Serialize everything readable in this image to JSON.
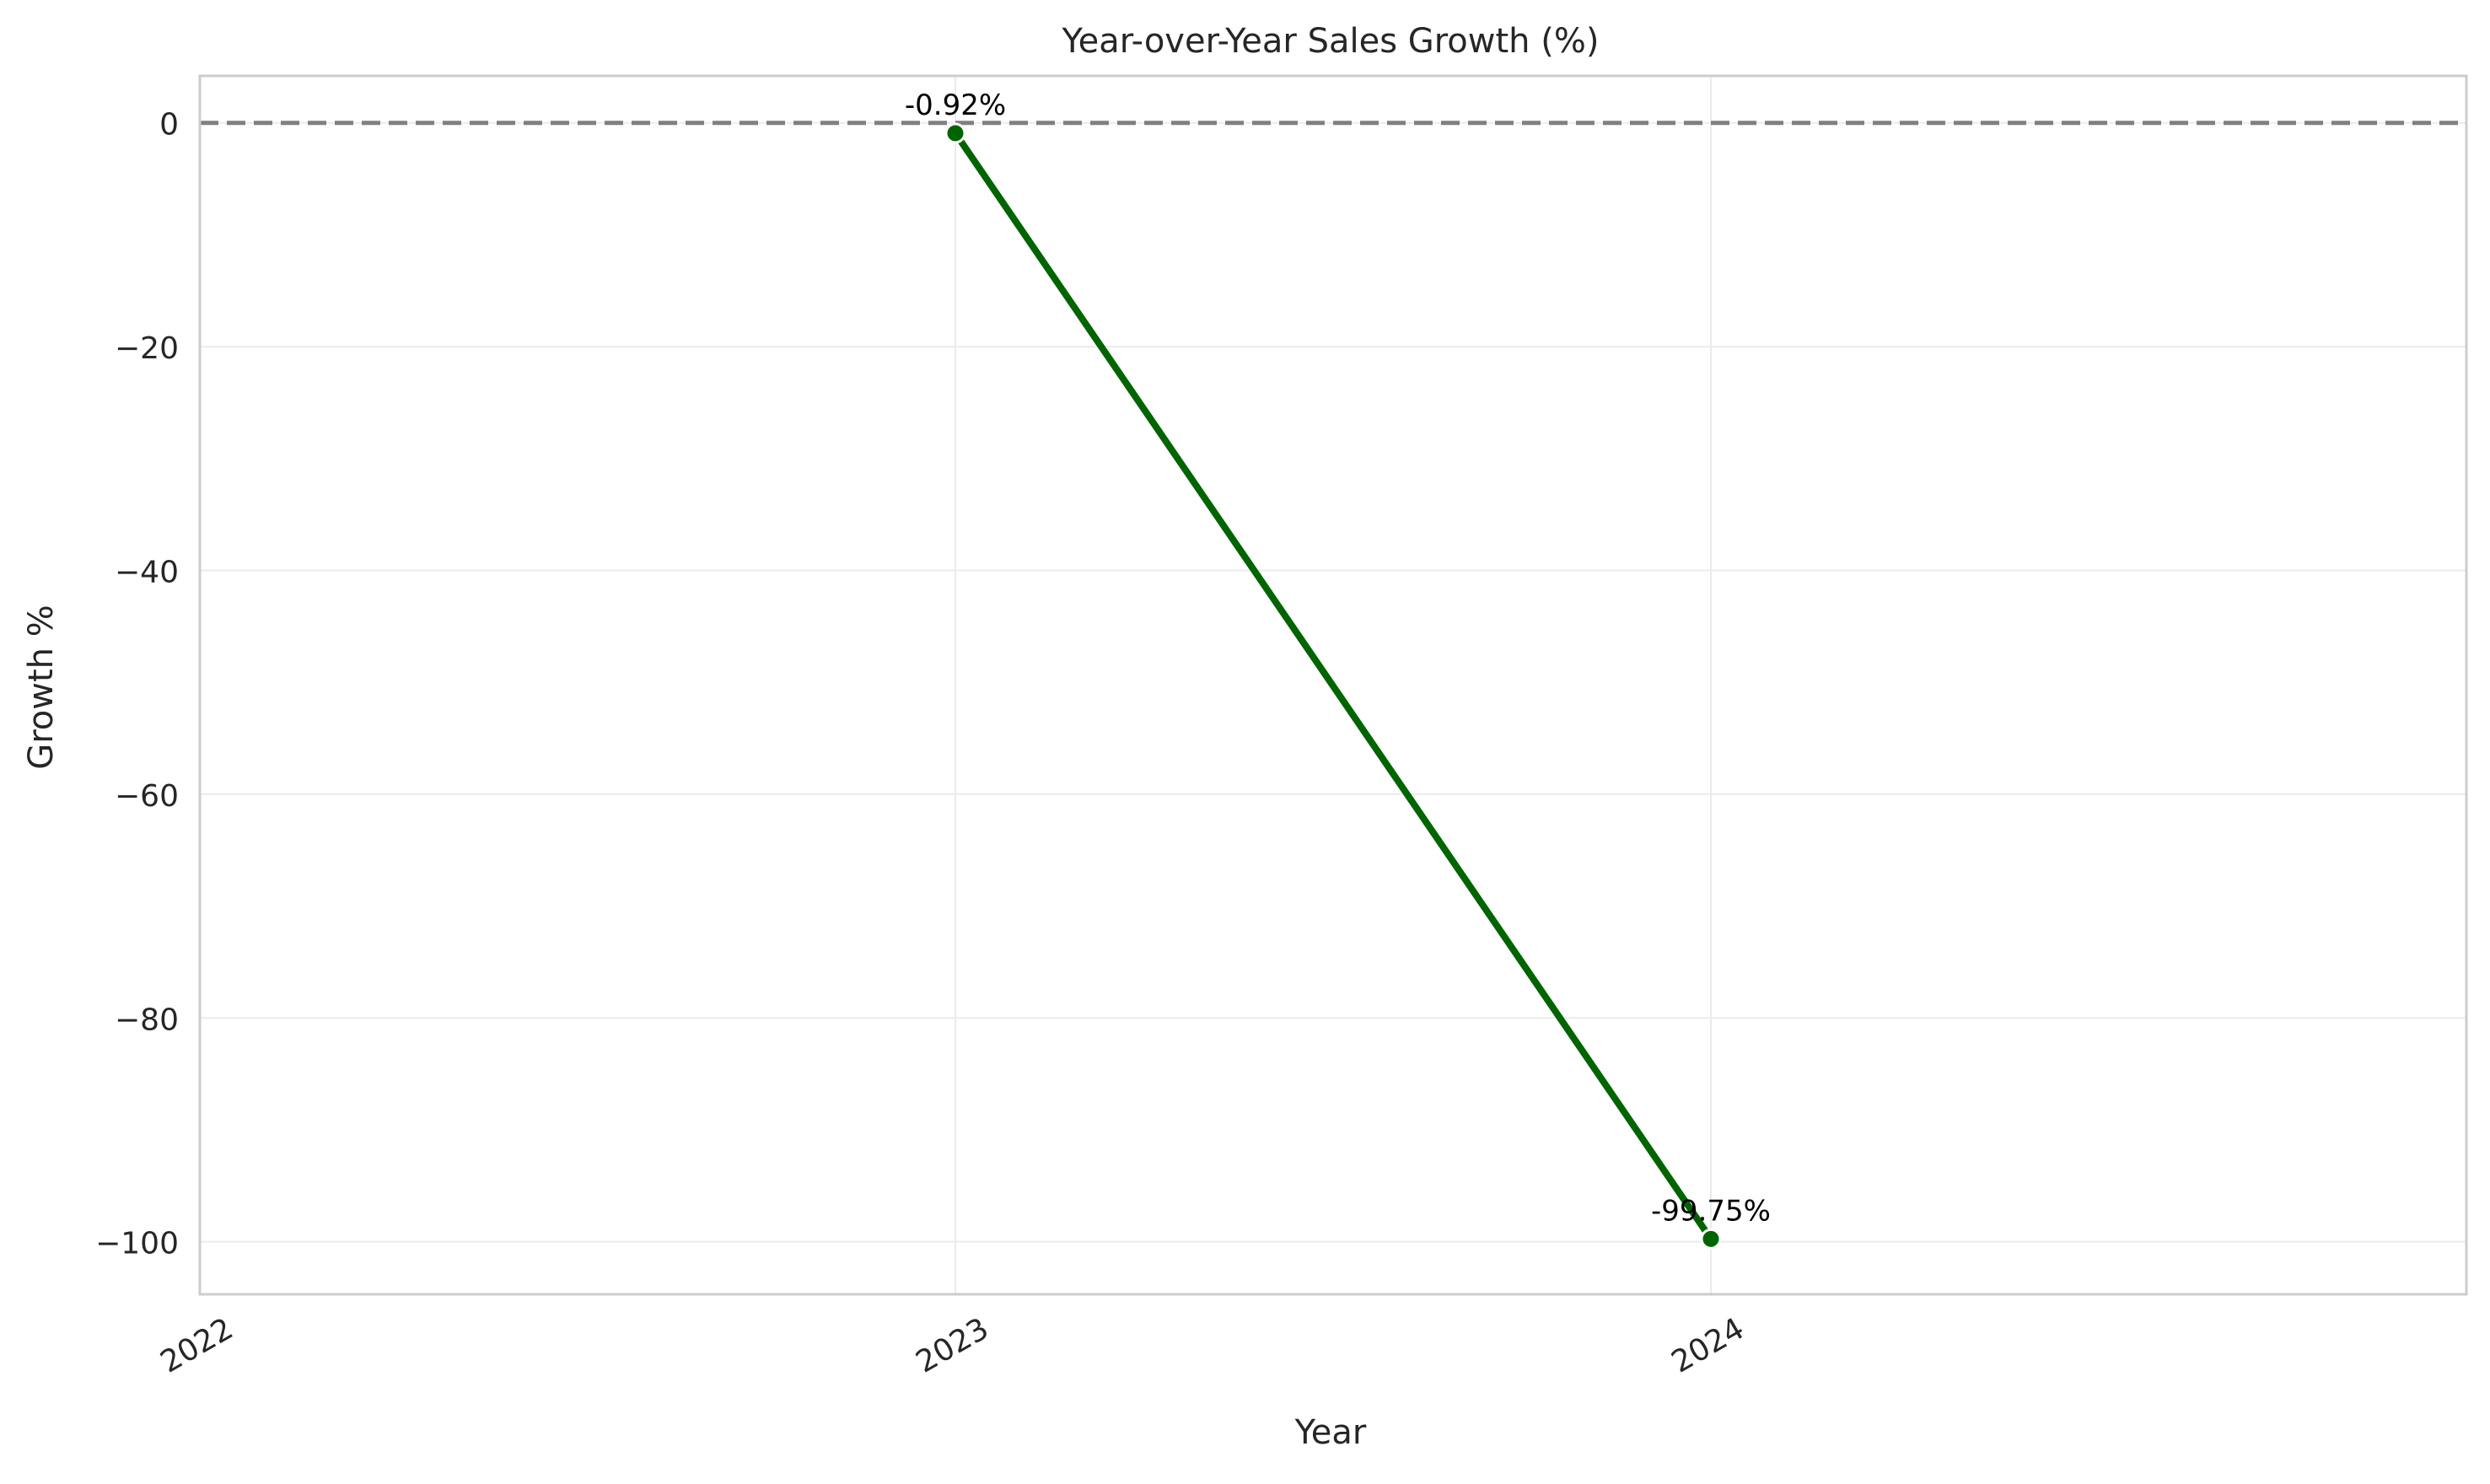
{
  "chart_data": {
    "type": "line",
    "title": "Year-over-Year Sales Growth (%)",
    "xlabel": "Year",
    "ylabel": "Growth %",
    "x_ticks": [
      "2022",
      "2023",
      "2024"
    ],
    "x_range": [
      2022,
      2025
    ],
    "ylim": [
      -104.7,
      4.2
    ],
    "y_ticks": [
      0,
      -20,
      -40,
      -60,
      -80,
      -100
    ],
    "y_tick_labels": [
      "0",
      "−20",
      "−40",
      "−60",
      "−80",
      "−100"
    ],
    "grid": true,
    "reference_line": {
      "y": 0,
      "style": "dashed",
      "color": "#808080"
    },
    "series": [
      {
        "x": [
          2023,
          2024
        ],
        "values": [
          -0.92,
          -99.75
        ],
        "labels": [
          "-0.92%",
          "-99.75%"
        ],
        "color": "#006400"
      }
    ]
  }
}
